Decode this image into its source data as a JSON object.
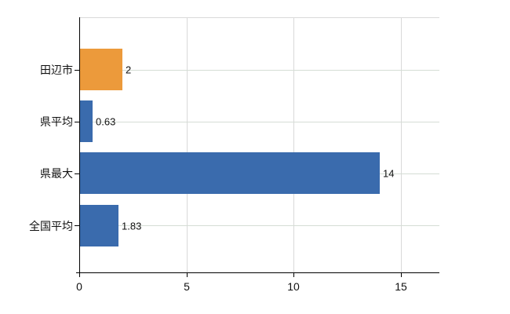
{
  "chart_data": {
    "type": "bar",
    "orientation": "horizontal",
    "title": "",
    "xlabel": "",
    "ylabel": "",
    "categories": [
      "田辺市",
      "県平均",
      "県最大",
      "全国平均"
    ],
    "values": [
      2,
      0.63,
      14,
      1.83
    ],
    "value_labels": [
      "2",
      "0.63",
      "14",
      "1.83"
    ],
    "bar_colors": [
      "#EC9A3B",
      "#3A6BAD",
      "#3A6BAD",
      "#3A6BAD"
    ],
    "x_ticks": [
      0,
      5,
      10,
      15
    ],
    "x_tick_labels": [
      "0",
      "5",
      "10",
      "15"
    ],
    "xlim": [
      0,
      16.8
    ],
    "grid": true,
    "legend": false,
    "colors": {
      "background": "#ffffff",
      "axis_line": "#000000",
      "vertical_gridline": "#d9d9d9",
      "horizontal_gridline": "#d5ddd5",
      "plot_top_border": "#d9d9d9",
      "text": "#111111"
    }
  }
}
